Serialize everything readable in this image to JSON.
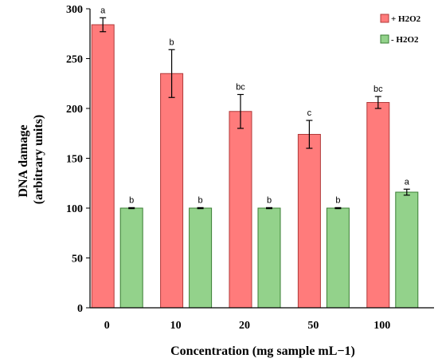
{
  "chart_data": {
    "type": "bar",
    "title": "",
    "xlabel": "Concentration (mg sample mL−1)",
    "ylabel_line1": "DNA damage",
    "ylabel_line2": "(arbitrary units)",
    "ylim": [
      0,
      300
    ],
    "yticks": [
      0,
      50,
      100,
      150,
      200,
      250,
      300
    ],
    "categories": [
      "0",
      "10",
      "20",
      "50",
      "100"
    ],
    "grid": false,
    "legend_position": "top-right",
    "series": [
      {
        "name": "+ H2O2",
        "color": "#ff7b7b",
        "edge_color": "#b03a3a",
        "values": [
          284,
          235,
          197,
          174,
          206
        ],
        "errors": [
          7,
          24,
          17,
          14,
          6
        ],
        "letters": [
          "a",
          "b",
          "bc",
          "c",
          "bc"
        ]
      },
      {
        "name": "- H2O2",
        "color": "#93d28b",
        "edge_color": "#3a7d33",
        "values": [
          100,
          100,
          100,
          100,
          116
        ],
        "errors": [
          0.5,
          0.5,
          0.5,
          0.5,
          3
        ],
        "letters": [
          "b",
          "b",
          "b",
          "b",
          "a"
        ]
      }
    ]
  }
}
